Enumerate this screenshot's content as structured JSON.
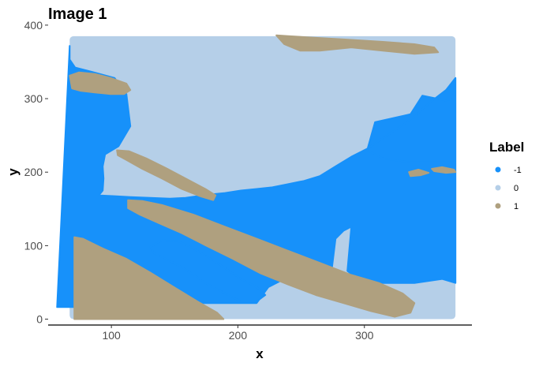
{
  "chart_data": {
    "type": "heatmap",
    "title": "Image 1",
    "xlabel": "x",
    "ylabel": "y",
    "xlim": [
      50,
      385
    ],
    "ylim": [
      -8,
      402
    ],
    "x_ticks": [
      100,
      200,
      300
    ],
    "y_ticks": [
      0,
      100,
      200,
      300,
      400
    ],
    "grid": false,
    "legend": {
      "title": "Label",
      "placement": "right",
      "entries": [
        {
          "label": "-1",
          "color": "#1791FA"
        },
        {
          "label": "0",
          "color": "#B5CFE8"
        },
        {
          "label": "1",
          "color": "#AFA07F"
        }
      ]
    },
    "extent": {
      "x": [
        67,
        372
      ],
      "y": [
        0,
        385
      ]
    },
    "regions": [
      {
        "label": "-1",
        "name": "upper region",
        "points": [
          [
            67,
            385
          ],
          [
            175,
            385
          ],
          [
            175,
            380
          ],
          [
            320,
            380
          ],
          [
            335,
            360
          ],
          [
            355,
            350
          ],
          [
            375,
            345
          ],
          [
            415,
            340
          ],
          [
            420,
            300
          ],
          [
            430,
            290
          ],
          [
            440,
            285
          ],
          [
            435,
            340
          ],
          [
            455,
            355
          ],
          [
            520,
            355
          ],
          [
            555,
            350
          ],
          [
            572,
            355
          ],
          [
            572,
            125
          ],
          [
            560,
            128
          ],
          [
            530,
            122
          ],
          [
            515,
            145
          ],
          [
            470,
            155
          ],
          [
            460,
            190
          ],
          [
            480,
            200
          ],
          [
            515,
            205
          ],
          [
            560,
            205
          ],
          [
            572,
            205
          ],
          [
            572,
            100
          ],
          [
            560,
            115
          ],
          [
            540,
            130
          ],
          [
            520,
            148
          ],
          [
            500,
            162
          ],
          [
            480,
            175
          ],
          [
            460,
            188
          ],
          [
            440,
            198
          ],
          [
            420,
            210
          ],
          [
            400,
            222
          ],
          [
            380,
            228
          ],
          [
            360,
            232
          ],
          [
            340,
            236
          ],
          [
            320,
            238
          ],
          [
            300,
            240
          ],
          [
            280,
            243
          ],
          [
            260,
            245
          ],
          [
            245,
            247
          ],
          [
            230,
            249
          ],
          [
            210,
            250
          ],
          [
            185,
            249
          ],
          [
            160,
            248
          ],
          [
            140,
            247
          ],
          [
            120,
            246
          ],
          [
            125,
            240
          ],
          [
            126,
            225
          ],
          [
            125,
            210
          ],
          [
            128,
            195
          ],
          [
            145,
            185
          ],
          [
            160,
            160
          ],
          [
            155,
            120
          ],
          [
            140,
            100
          ],
          [
            110,
            92
          ],
          [
            90,
            87
          ],
          [
            83,
            77
          ],
          [
            83,
            60
          ]
        ]
      },
      {
        "label": "-1",
        "name": "lower pocket",
        "points": [
          [
            185,
            310
          ],
          [
            200,
            302
          ],
          [
            220,
            303
          ],
          [
            240,
            312
          ],
          [
            270,
            330
          ],
          [
            300,
            350
          ],
          [
            320,
            360
          ],
          [
            331,
            370
          ],
          [
            320,
            378
          ],
          [
            300,
            378
          ],
          [
            280,
            368
          ],
          [
            255,
            355
          ],
          [
            230,
            338
          ],
          [
            205,
            325
          ],
          [
            190,
            318
          ]
        ]
      },
      {
        "label": "1",
        "name": "top-right band",
        "points": [
          [
            345,
            47
          ],
          [
            360,
            48
          ],
          [
            395,
            50
          ],
          [
            430,
            52
          ],
          [
            480,
            55
          ],
          [
            520,
            58
          ],
          [
            545,
            62
          ],
          [
            550,
            68
          ],
          [
            520,
            70
          ],
          [
            480,
            66
          ],
          [
            440,
            62
          ],
          [
            400,
            66
          ],
          [
            375,
            66
          ],
          [
            355,
            58
          ]
        ]
      },
      {
        "label": "1",
        "name": "left blob",
        "points": [
          [
            83,
            97
          ],
          [
            95,
            93
          ],
          [
            115,
            95
          ],
          [
            135,
            100
          ],
          [
            155,
            107
          ],
          [
            160,
            115
          ],
          [
            152,
            120
          ],
          [
            135,
            120
          ],
          [
            115,
            118
          ],
          [
            97,
            116
          ],
          [
            86,
            113
          ]
        ]
      },
      {
        "label": "1",
        "name": "small right strip",
        "points": [
          [
            513,
            217
          ],
          [
            525,
            214
          ],
          [
            538,
            218
          ],
          [
            528,
            221
          ],
          [
            515,
            222
          ]
        ]
      },
      {
        "label": "1",
        "name": "small right strip 2",
        "points": [
          [
            542,
            213
          ],
          [
            555,
            211
          ],
          [
            570,
            214
          ],
          [
            572,
            217
          ],
          [
            560,
            218
          ],
          [
            545,
            216
          ]
        ]
      },
      {
        "label": "1",
        "name": "middle diagonal band",
        "points": [
          [
            143,
            190
          ],
          [
            158,
            191
          ],
          [
            180,
            200
          ],
          [
            205,
            212
          ],
          [
            230,
            225
          ],
          [
            255,
            238
          ],
          [
            268,
            246
          ],
          [
            265,
            252
          ],
          [
            248,
            247
          ],
          [
            225,
            238
          ],
          [
            200,
            225
          ],
          [
            175,
            213
          ],
          [
            155,
            202
          ],
          [
            144,
            196
          ]
        ]
      },
      {
        "label": "1",
        "name": "lower diagonal band",
        "points": [
          [
            157,
            252
          ],
          [
            175,
            253
          ],
          [
            200,
            258
          ],
          [
            240,
            270
          ],
          [
            280,
            285
          ],
          [
            320,
            300
          ],
          [
            360,
            315
          ],
          [
            400,
            330
          ],
          [
            440,
            345
          ],
          [
            475,
            355
          ],
          [
            505,
            368
          ],
          [
            520,
            380
          ],
          [
            515,
            392
          ],
          [
            495,
            397
          ],
          [
            465,
            390
          ],
          [
            430,
            380
          ],
          [
            395,
            370
          ],
          [
            360,
            357
          ],
          [
            325,
            343
          ],
          [
            290,
            325
          ],
          [
            255,
            308
          ],
          [
            225,
            293
          ],
          [
            195,
            280
          ],
          [
            172,
            270
          ],
          [
            157,
            262
          ]
        ]
      },
      {
        "label": "1",
        "name": "bottom-left wedge",
        "points": [
          [
            89,
            298
          ],
          [
            100,
            300
          ],
          [
            125,
            312
          ],
          [
            155,
            325
          ],
          [
            185,
            342
          ],
          [
            215,
            360
          ],
          [
            245,
            378
          ],
          [
            270,
            392
          ],
          [
            278,
            400
          ],
          [
            89,
            400
          ]
        ]
      }
    ]
  }
}
